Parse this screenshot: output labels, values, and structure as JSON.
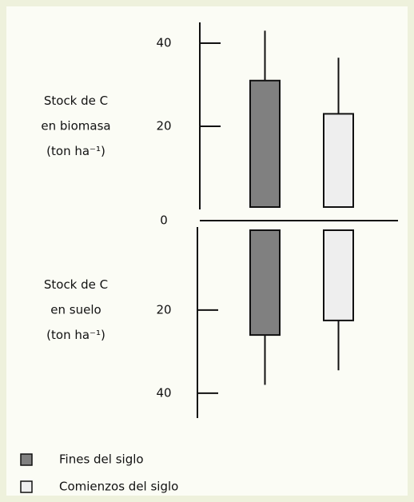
{
  "chart_data": [
    {
      "type": "bar",
      "ylabel": [
        "Stock de C",
        "en biomasa",
        "(ton ha⁻¹)"
      ],
      "ylim": [
        0,
        45
      ],
      "yticks": [
        0,
        20,
        40
      ],
      "series": [
        {
          "name": "Fines del siglo",
          "color": "#808080",
          "values": [
            31
          ],
          "errors": [
            12
          ]
        },
        {
          "name": "Comienzos del siglo",
          "color": "#eeeeee",
          "values": [
            23
          ],
          "errors": [
            13.5
          ]
        }
      ]
    },
    {
      "type": "bar",
      "inverted": true,
      "ylabel": [
        "Stock de C",
        "en suelo",
        "(ton ha⁻¹)"
      ],
      "ylim": [
        0,
        46
      ],
      "yticks": [
        20,
        40
      ],
      "series": [
        {
          "color": "#808080",
          "values": [
            26
          ],
          "errors": [
            12
          ]
        },
        {
          "color": "#eeeeee",
          "values": [
            22.5
          ],
          "errors": [
            12
          ]
        }
      ]
    }
  ]
}
